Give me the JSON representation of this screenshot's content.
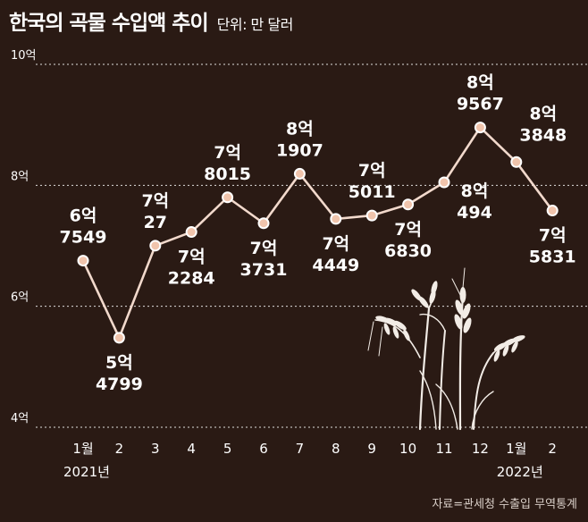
{
  "header": {
    "title": "한국의 곡물 수입액 추이",
    "unit": "단위: 만 달러"
  },
  "source": "자료=관세청 수출입 무역통계",
  "colors": {
    "background": "#2a1a14",
    "line": "#f2d9cc",
    "marker_fill": "#f0c4ac",
    "marker_stroke": "#ffffff",
    "grid": "#ffffff",
    "wheat": "#f2ece6"
  },
  "decoration": {
    "icon": "wheat-stalks-icon"
  },
  "chart_data": {
    "type": "line",
    "title": "한국의 곡물 수입액 추이",
    "ylabel": "",
    "xlabel": "",
    "ylim": [
      40000,
      100000
    ],
    "y_ticks": [
      {
        "value": 40000,
        "label": "4억"
      },
      {
        "value": 60000,
        "label": "6억"
      },
      {
        "value": 80000,
        "label": "8억"
      },
      {
        "value": 100000,
        "label": "10억"
      }
    ],
    "grid": "horizontal dashed",
    "categories": [
      "1월",
      "2",
      "3",
      "4",
      "5",
      "6",
      "7",
      "8",
      "9",
      "10",
      "11",
      "12",
      "1월",
      "2"
    ],
    "year_labels": [
      {
        "index": 0,
        "label": "2021년"
      },
      {
        "index": 12,
        "label": "2022년"
      }
    ],
    "values": [
      67549,
      54799,
      70027,
      72284,
      78015,
      73731,
      81907,
      74449,
      75011,
      76830,
      80494,
      89567,
      83848,
      75831
    ],
    "data_labels": [
      {
        "index": 0,
        "line1": "6억",
        "line2": "7549",
        "pos": "above"
      },
      {
        "index": 1,
        "line1": "5억",
        "line2": "4799",
        "pos": "below"
      },
      {
        "index": 2,
        "line1": "7억",
        "line2": "27",
        "pos": "above"
      },
      {
        "index": 3,
        "line1": "7억",
        "line2": "2284",
        "pos": "below"
      },
      {
        "index": 4,
        "line1": "7억",
        "line2": "8015",
        "pos": "above"
      },
      {
        "index": 5,
        "line1": "7억",
        "line2": "3731",
        "pos": "below"
      },
      {
        "index": 6,
        "line1": "8억",
        "line2": "1907",
        "pos": "above"
      },
      {
        "index": 7,
        "line1": "7억",
        "line2": "4449",
        "pos": "below"
      },
      {
        "index": 8,
        "line1": "7억",
        "line2": "5011",
        "pos": "above"
      },
      {
        "index": 9,
        "line1": "7억",
        "line2": "6830",
        "pos": "below"
      },
      {
        "index": 10,
        "line1": "8억",
        "line2": "494",
        "pos": "below-right"
      },
      {
        "index": 11,
        "line1": "8억",
        "line2": "9567",
        "pos": "above"
      },
      {
        "index": 12,
        "line1": "8억",
        "line2": "3848",
        "pos": "above-right"
      },
      {
        "index": 13,
        "line1": "7억",
        "line2": "5831",
        "pos": "below"
      }
    ]
  }
}
